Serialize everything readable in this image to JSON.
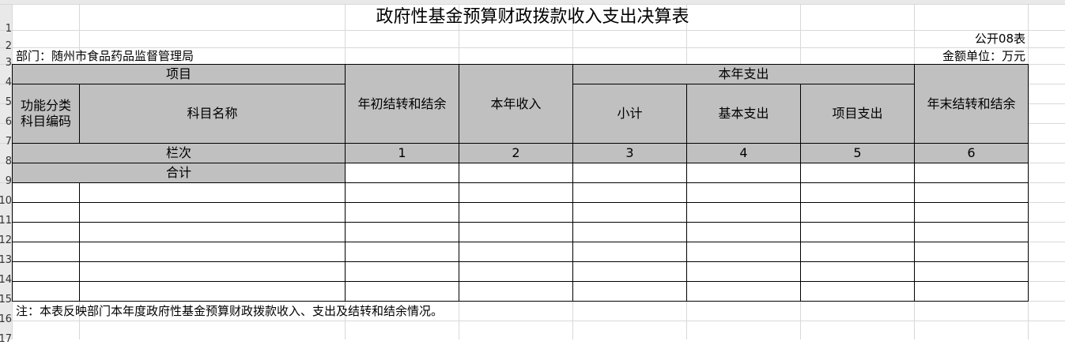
{
  "sheet": {
    "row_numbers": [
      "1",
      "2",
      "3",
      "4",
      "5",
      "6",
      "7",
      "8",
      "9",
      "10",
      "11",
      "12",
      "13",
      "14",
      "15",
      "16",
      "17"
    ],
    "title": "政府性基金预算财政拨款收入支出决算表",
    "code": "公开08表",
    "department": "部门：随州市食品药品监督管理局",
    "unit": "金额单位：万元",
    "headers": {
      "item": "项目",
      "function_code": [
        "功能分类",
        "科目编码"
      ],
      "subject_name": "科目名称",
      "opening_balance": "年初结转和结余",
      "income": "本年收入",
      "expense": "本年支出",
      "subtotal": "小计",
      "basic_expense": "基本支出",
      "project_expense": "项目支出",
      "closing_balance": "年末结转和结余"
    },
    "column_index_label": "栏次",
    "column_numbers": [
      "1",
      "2",
      "3",
      "4",
      "5",
      "6"
    ],
    "total_label": "合计",
    "note": "注：本表反映部门本年度政府性基金预算财政拨款收入、支出及结转和结余情况。"
  }
}
